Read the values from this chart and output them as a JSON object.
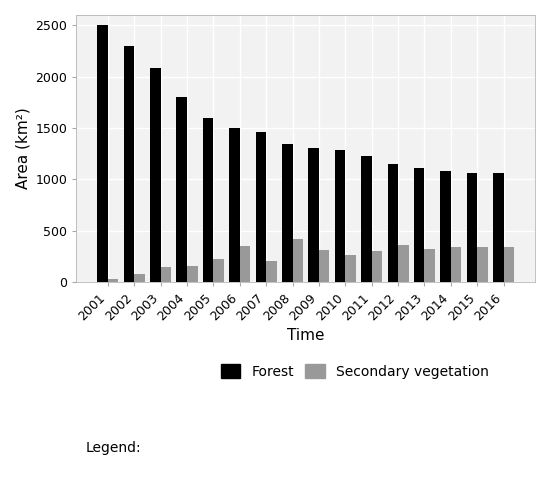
{
  "years": [
    2001,
    2002,
    2003,
    2004,
    2005,
    2006,
    2007,
    2008,
    2009,
    2010,
    2011,
    2012,
    2013,
    2014,
    2015,
    2016
  ],
  "forest": [
    2500,
    2300,
    2080,
    1800,
    1600,
    1500,
    1460,
    1340,
    1310,
    1290,
    1230,
    1150,
    1110,
    1080,
    1060,
    1060
  ],
  "secondary_veg": [
    35,
    80,
    150,
    155,
    230,
    350,
    210,
    420,
    310,
    260,
    300,
    360,
    320,
    340,
    340,
    345
  ],
  "forest_color": "#000000",
  "secondary_color": "#999999",
  "bg_color": "#ffffff",
  "plot_bg_color": "#f2f2f2",
  "xlabel": "Time",
  "ylabel": "Area (km²)",
  "ylim": [
    0,
    2600
  ],
  "yticks": [
    0,
    500,
    1000,
    1500,
    2000,
    2500
  ],
  "legend_label_forest": "Forest",
  "legend_label_secondary": "Secondary vegetation",
  "legend_prefix": "Legend:",
  "bar_width": 0.4,
  "axis_fontsize": 11,
  "tick_fontsize": 9,
  "legend_fontsize": 10,
  "grid_color": "#ffffff",
  "grid_linewidth": 1.0
}
